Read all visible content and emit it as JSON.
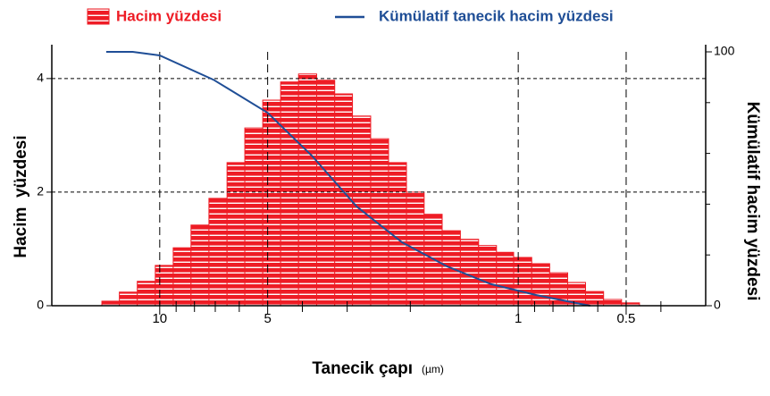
{
  "chart_data": {
    "type": "histogram",
    "xlabel": "Tanecik çapı",
    "xunit": "(µm)",
    "ylabel": "Hacim  yüzdesi",
    "y2label": "Kümülatif hacim yüzdesi",
    "xscale": "log",
    "xlim": [
      20,
      0.3
    ],
    "xticks": [
      10,
      5,
      1,
      0.5
    ],
    "xminor_ticks": [
      9,
      8,
      7,
      6,
      4,
      3,
      2,
      0.9,
      0.8,
      0.7,
      0.6,
      0.4
    ],
    "ylim": [
      0,
      4.47
    ],
    "yticks": [
      0,
      2,
      4
    ],
    "y2lim": [
      0,
      100
    ],
    "y2ticks": [
      0,
      100
    ],
    "y2minor_ticks": [
      20,
      40,
      60,
      80
    ],
    "grid": true,
    "legend": "top",
    "series": [
      {
        "name": "Hacim yüzdesi",
        "color": "#ee1c25",
        "bins": [
          14.5,
          12.96,
          11.55,
          10.29,
          9.17,
          8.18,
          7.29,
          6.49,
          5.79,
          5.16,
          4.6,
          4.1,
          3.65,
          3.25,
          2.9,
          2.58,
          2.3,
          2.05,
          1.83,
          1.63,
          1.45,
          1.29,
          1.15,
          1.03,
          0.917,
          0.817,
          0.728,
          0.649,
          0.578,
          0.515,
          0.459
        ],
        "values": [
          0.08,
          0.24,
          0.43,
          0.71,
          1.02,
          1.42,
          1.89,
          2.52,
          3.13,
          3.62,
          3.94,
          4.08,
          3.97,
          3.73,
          3.34,
          2.94,
          2.52,
          2.0,
          1.61,
          1.32,
          1.17,
          1.06,
          0.94,
          0.85,
          0.74,
          0.58,
          0.41,
          0.25,
          0.11,
          0.05
        ]
      },
      {
        "name": "Kümülatif tanecik hacim yüzdesi",
        "color": "#1f4e96",
        "type": "line",
        "axis": "y2",
        "x": [
          14.1,
          11.9,
          10,
          7.08,
          5,
          3.76,
          2.82,
          2.11,
          1.58,
          1.19,
          0.89,
          0.67,
          0.63
        ],
        "values": [
          100,
          100,
          98.6,
          89,
          76,
          59,
          39,
          25,
          15.5,
          8.5,
          4.2,
          0.7,
          0
        ]
      }
    ]
  }
}
